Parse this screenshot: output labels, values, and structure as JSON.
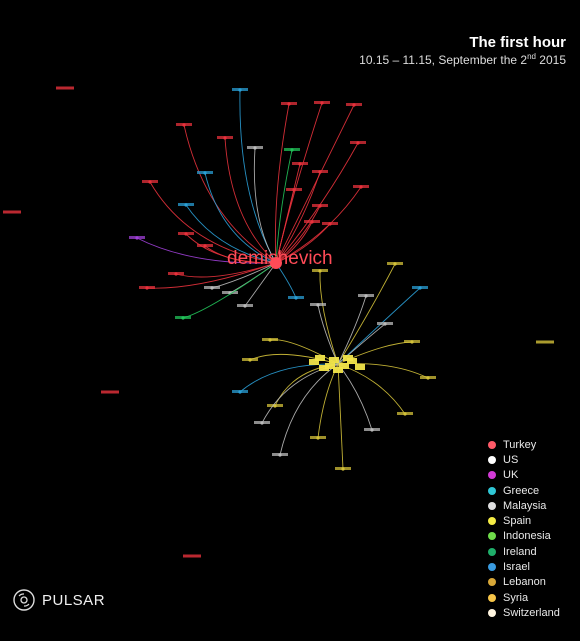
{
  "title": "The first hour",
  "subtitle": {
    "prefix": "10.15 – 11.15, September the 2",
    "sup": "nd",
    "suffix": " 2015"
  },
  "hub_label": "demishevich",
  "brand": {
    "name": "PULSAR",
    "icon": "pulsar-logo-icon"
  },
  "colors": {
    "background": "#000000",
    "hub_red": "#ff4b57",
    "hub_yellow": "#f2e54a",
    "edge_red": "#e8323c",
    "edge_yellow": "#d4c23a",
    "edge_blue": "#2a9fd6",
    "edge_purple": "#a040d8",
    "edge_green": "#22c35a",
    "edge_white": "#bbbbbb"
  },
  "legend": [
    {
      "label": "Turkey",
      "color": "#ff5a68"
    },
    {
      "label": "US",
      "color": "#ffffff"
    },
    {
      "label": "UK",
      "color": "#d23ad6"
    },
    {
      "label": "Greece",
      "color": "#2fc7d6"
    },
    {
      "label": "Malaysia",
      "color": "#dededf"
    },
    {
      "label": "Spain",
      "color": "#f5ec45"
    },
    {
      "label": "Indonesia",
      "color": "#6fdc4a"
    },
    {
      "label": "Ireland",
      "color": "#1fae6a"
    },
    {
      "label": "Israel",
      "color": "#3a9be0"
    },
    {
      "label": "Lebanon",
      "color": "#d8a838"
    },
    {
      "label": "Syria",
      "color": "#f7c548"
    },
    {
      "label": "Switzerland",
      "color": "#fff5e0"
    }
  ],
  "diagram": {
    "hubs": [
      {
        "name": "demishevich-hub",
        "color": "#ff4b57"
      },
      {
        "name": "spain-cluster-hub",
        "color": "#f2e54a"
      }
    ]
  }
}
